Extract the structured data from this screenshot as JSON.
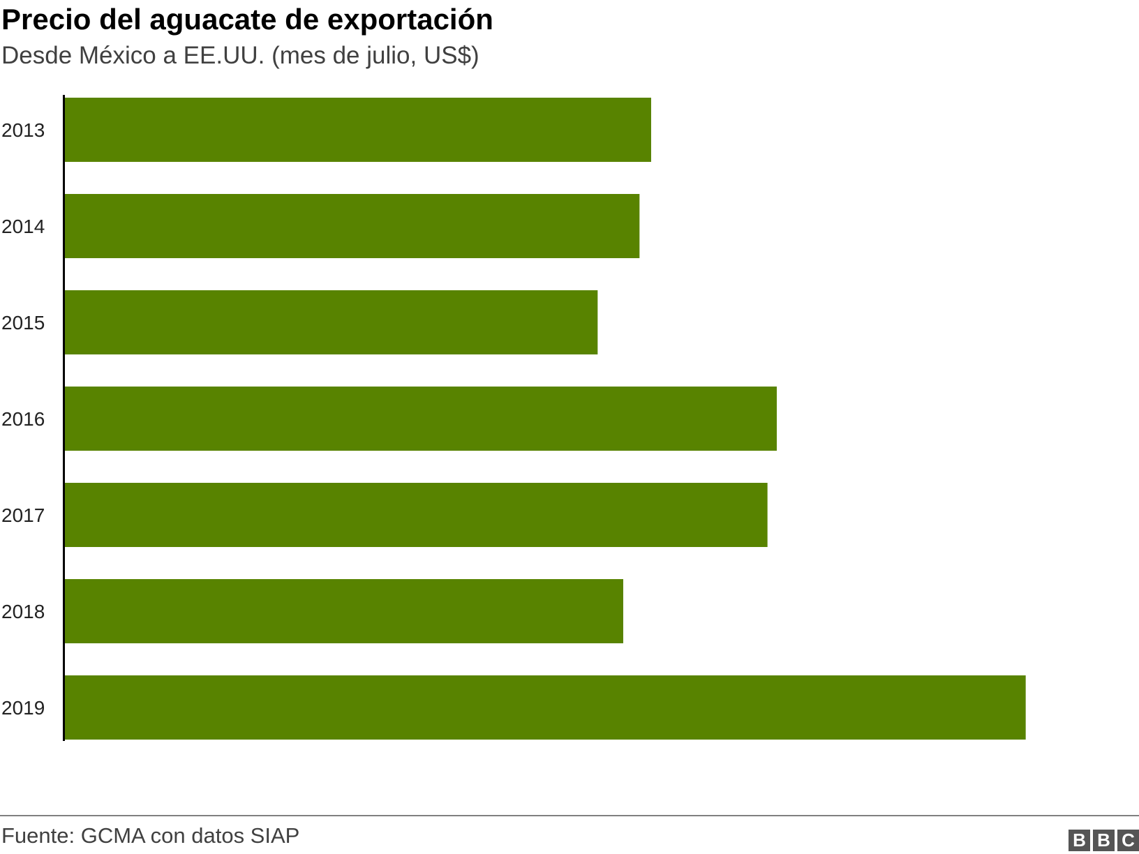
{
  "header": {
    "title": "Precio del aguacate de exportación",
    "subtitle": "Desde México a EE.UU. (mes de julio, US$)"
  },
  "footer": {
    "source": "Fuente: GCMA con datos SIAP",
    "logo_letters": [
      "B",
      "B",
      "C"
    ]
  },
  "chart_data": {
    "type": "bar",
    "orientation": "horizontal",
    "categories": [
      "2013",
      "2014",
      "2015",
      "2016",
      "2017",
      "2018",
      "2019"
    ],
    "values": [
      2.52,
      2.47,
      2.29,
      3.06,
      3.02,
      2.4,
      4.13
    ],
    "xlim": [
      0,
      4.5
    ],
    "xticks": [
      "0,0",
      "0,5",
      "1,0",
      "1,5",
      "2,0",
      "2,5",
      "3,0",
      "3,5",
      "4,0",
      "4,5"
    ],
    "title": "Precio del aguacate de exportación",
    "subtitle": "Desde México a EE.UU. (mes de julio, US$)",
    "grid": false,
    "bar_color": "#588300"
  }
}
